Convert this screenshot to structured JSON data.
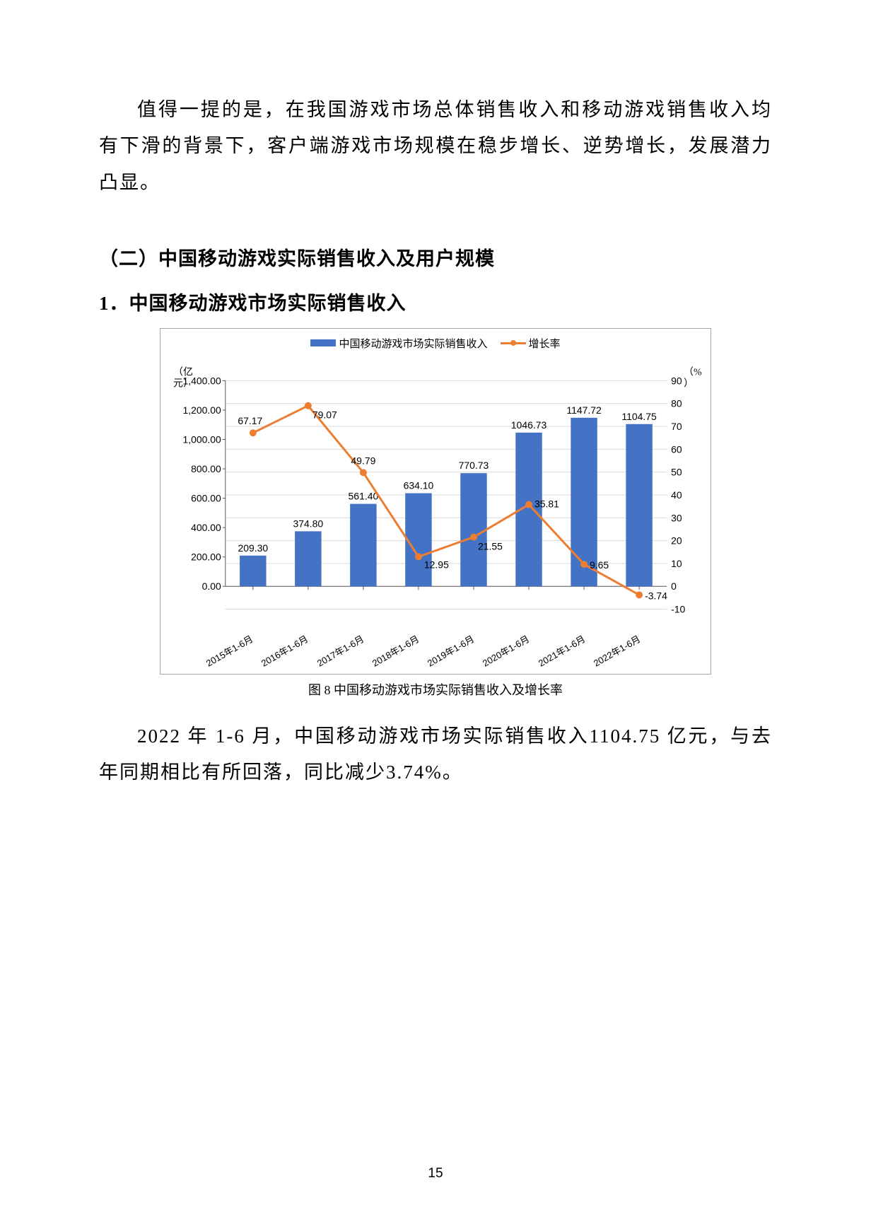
{
  "para1": "值得一提的是，在我国游戏市场总体销售收入和移动游戏销售收入均有下滑的背景下，客户端游戏市场规模在稳步增长、逆势增长，发展潜力凸显。",
  "heading2": "（二）中国移动游戏实际销售收入及用户规模",
  "heading3": "1．中国移动游戏市场实际销售收入",
  "chart": {
    "type": "bar+line",
    "legend_bar": "中国移动游戏市场实际销售收入",
    "legend_line": "增长率",
    "y_left_unit": "（亿元）",
    "y_right_unit": "（%）",
    "y_left_min": 0,
    "y_left_max": 1400,
    "y_left_step": 200,
    "y_left_ticks": [
      "0.00",
      "200.00",
      "400.00",
      "600.00",
      "800.00",
      "1,000.00",
      "1,200.00",
      "1,400.00"
    ],
    "y_right_min": -10,
    "y_right_max": 90,
    "y_right_step": 10,
    "y_right_ticks": [
      "-10",
      "0",
      "10",
      "20",
      "30",
      "40",
      "50",
      "60",
      "70",
      "80",
      "90"
    ],
    "categories": [
      "2015年1-6月",
      "2016年1-6月",
      "2017年1-6月",
      "2018年1-6月",
      "2019年1-6月",
      "2020年1-6月",
      "2021年1-6月",
      "2022年1-6月"
    ],
    "bars": [
      209.3,
      374.8,
      561.4,
      634.1,
      770.73,
      1046.73,
      1147.72,
      1104.75
    ],
    "bar_labels": [
      "209.30",
      "374.80",
      "561.40",
      "634.10",
      "770.73",
      "1046.73",
      "1147.72",
      "1104.75"
    ],
    "line": [
      67.17,
      79.07,
      49.79,
      12.95,
      21.55,
      35.81,
      9.65,
      -3.74
    ],
    "line_labels": [
      "67.17",
      "79.07",
      "49.79",
      "12.95",
      "21.55",
      "35.81",
      "9.65",
      "-3.74"
    ],
    "bar_color": "#4472c4",
    "line_color": "#ed7d31",
    "grid_color": "#d9d9d9",
    "axis_color": "#595959",
    "background": "#ffffff",
    "label_fontsize": 14,
    "bar_width_ratio": 0.48
  },
  "caption": "图 8 中国移动游戏市场实际销售收入及增长率",
  "para2": "2022 年 1-6 月，中国移动游戏市场实际销售收入1104.75 亿元，与去年同期相比有所回落，同比减少3.74%。",
  "page_number": "15"
}
